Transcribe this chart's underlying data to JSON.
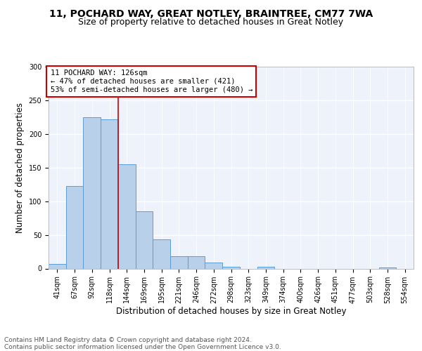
{
  "title1": "11, POCHARD WAY, GREAT NOTLEY, BRAINTREE, CM77 7WA",
  "title2": "Size of property relative to detached houses in Great Notley",
  "xlabel": "Distribution of detached houses by size in Great Notley",
  "ylabel": "Number of detached properties",
  "footnote1": "Contains HM Land Registry data © Crown copyright and database right 2024.",
  "footnote2": "Contains public sector information licensed under the Open Government Licence v3.0.",
  "annotation_line1": "11 POCHARD WAY: 126sqm",
  "annotation_line2": "← 47% of detached houses are smaller (421)",
  "annotation_line3": "53% of semi-detached houses are larger (480) →",
  "bar_labels": [
    "41sqm",
    "67sqm",
    "92sqm",
    "118sqm",
    "144sqm",
    "169sqm",
    "195sqm",
    "221sqm",
    "246sqm",
    "272sqm",
    "298sqm",
    "323sqm",
    "349sqm",
    "374sqm",
    "400sqm",
    "426sqm",
    "451sqm",
    "477sqm",
    "503sqm",
    "528sqm",
    "554sqm"
  ],
  "bar_values": [
    7,
    123,
    225,
    222,
    155,
    85,
    43,
    18,
    18,
    9,
    3,
    0,
    3,
    0,
    0,
    0,
    0,
    0,
    0,
    2,
    0
  ],
  "bar_color": "#b8d0ea",
  "bar_edge_color": "#5b9bd5",
  "property_line_x": 3.5,
  "ylim": [
    0,
    300
  ],
  "yticks": [
    0,
    50,
    100,
    150,
    200,
    250,
    300
  ],
  "background_color": "#eef2fb",
  "grid_color": "#ffffff",
  "annotation_box_color": "#cc0000",
  "property_line_color": "#cc0000",
  "title1_fontsize": 10,
  "title2_fontsize": 9,
  "axis_label_fontsize": 8.5,
  "tick_fontsize": 7,
  "annotation_fontsize": 7.5,
  "footnote_fontsize": 6.5,
  "fig_facecolor": "#ffffff"
}
